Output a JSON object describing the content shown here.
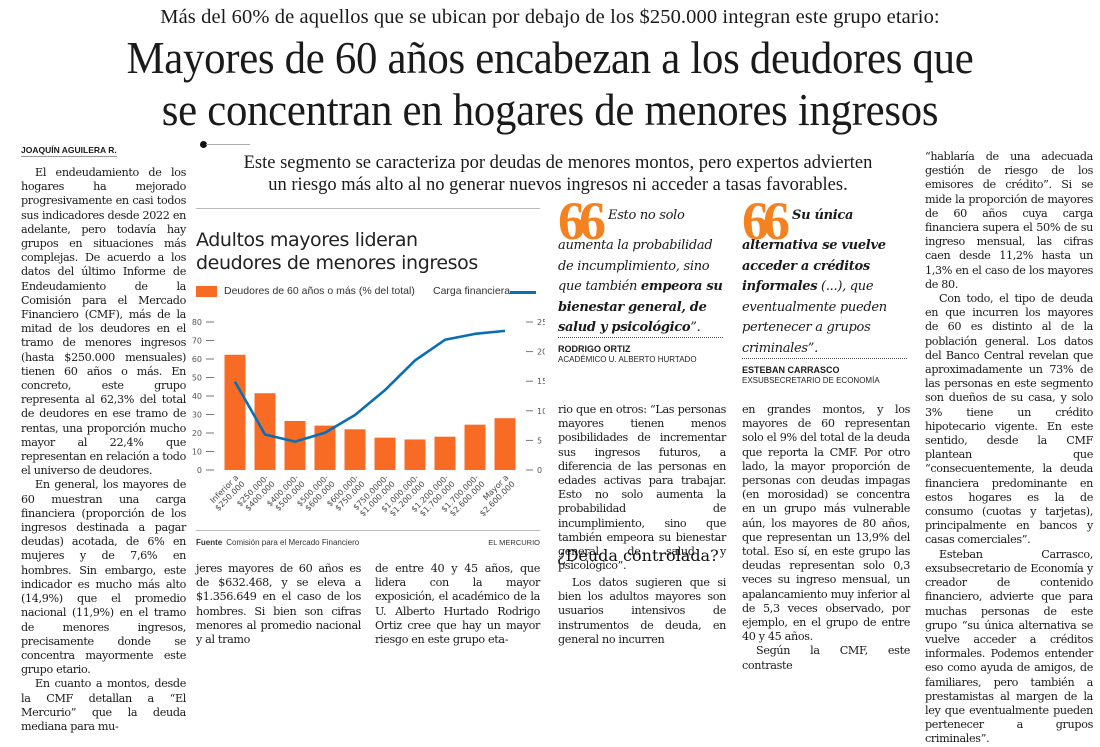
{
  "kicker": "Más del 60% de aquellos que se ubican por debajo de los $250.000 integran este grupo etario:",
  "headline": {
    "line1": "Mayores de 60 años encabezan a los deudores que",
    "line2": "se concentran en hogares de menores ingresos"
  },
  "byline": "JOAQUÍN AGUILERA R.",
  "deck": {
    "line1": "Este segmento se caracteriza por deudas de menores montos, pero expertos advierten",
    "line2": "un riesgo más alto al no generar nuevos ingresos ni acceder a tasas favorables."
  },
  "column1": {
    "p1": "El endeudamiento de los hogares ha mejorado progresivamente en casi todos sus indicadores desde 2022 en adelante, pero todavía hay grupos en situaciones más complejas. De acuerdo a los datos del último Informe de Endeudamiento de la Comisión para el Mercado Financiero (CMF), más de la mitad de los deudores en el tramo de menores ingresos (hasta $250.000 mensuales) tienen 60 años o más. En concreto, este grupo representa al 62,3% del total de deudores en ese tramo de rentas, una proporción mucho mayor al 22,4% que representan en relación a todo el universo de deudores.",
    "p2": "En general, los mayores de 60 muestran una carga financiera (proporción de los ingresos destinada a pagar deudas) acotada, de 6% en mujeres y de 7,6% en hombres. Sin embargo, este indicador es mucho más alto (14,9%) que el promedio nacional (11,9%) en el tramo de menores ingresos, precisamente donde se concentra mayormente este grupo etario.",
    "p3": "En cuanto a montos, desde la CMF detallan a “El Mercurio” que la deuda mediana para mu-"
  },
  "column2": {
    "p1": "jeres mayores de 60 años es de $632.468, y se eleva a $1.356.649 en el caso de los hombres. Si bien son cifras menores al promedio nacional y al tramo"
  },
  "column3": {
    "p1": "de entre 40 y 45 años, que lidera con la mayor exposición, el académico de la U. Alberto Hurtado Rodrigo Ortiz cree que hay un mayor riesgo en este grupo eta-"
  },
  "column4": {
    "p1": "rio que en otros: “Las personas mayores tienen menos posibilidades de incrementar sus ingresos futuros, a diferencia de las personas en edades activas para trabajar. Esto no solo aumenta la probabilidad de incumplimiento, sino que también empeora su bienestar general, de salud y psicológico”.",
    "subhead": "¿Deuda controlada?",
    "p2": "Los datos sugieren que si bien los adultos mayores son usuarios intensivos de instrumentos de deuda, en general no incurren"
  },
  "column5": {
    "p1": "en grandes montos, y los mayores de 60 representan solo el 9% del total de la deuda que reporta la CMF. Por otro lado, la mayor proporción de personas con deudas impagas (en morosidad) se concentra en un grupo más vulnerable aún, los mayores de 80 años, que representan un 13,9% del total. Eso sí, en este grupo las deudas representan solo 0,3 veces su ingreso mensual, un apalancamiento muy inferior al de 5,3 veces observado, por ejemplo, en el grupo de entre 40 y 45 años.",
    "p2": "Según la CMF, este contraste"
  },
  "column6": {
    "p1": "“hablaría de una adecuada gestión de riesgo de los emisores de crédito”. Si se mide la proporción de mayores de 60 años cuya carga financiera supera el 50% de su ingreso mensual, las cifras caen desde 11,2% hasta un 1,3% en el caso de los mayores de 80.",
    "p2": "Con todo, el tipo de deuda en que incurren los mayores de 60 es distinto al de la población general. Los datos del Banco Central revelan que aproximadamente un 73% de las personas en este segmento son dueños de su casa, y solo 3% tiene un crédito hipotecario vigente. En este sentido, desde la CMF plantean que “consecuentemente, la deuda financiera predominante en estos hogares es la de consumo (cuotas y tarjetas), principalmente en bancos y casas comerciales”.",
    "p3": "Esteban Carrasco, exsubsecretario de Economía y creador de contenido financiero, advierte que para muchas personas de este grupo “su única alternativa se vuelve acceder a créditos informales. Podemos entender eso como ayuda de amigos, de familiares, pero también a prestamistas al margen de la ley que eventualmente pueden pertenecer a grupos criminales”."
  },
  "quotes": [
    {
      "mark": "66",
      "text_regular": "Esto no solo aumenta la probabilidad de incumplimiento, sino que también ",
      "text_bold": "empeora su bienestar general, de salud y psicológico",
      "text_end": "”.",
      "name": "RODRIGO ORTIZ",
      "role": "ACADÉMICO U. ALBERTO HURTADO",
      "accent": "#f58220"
    },
    {
      "mark": "66",
      "text_bold": "Su única alternativa se vuelve acceder a créditos informales",
      "text_regular": " (...), que eventualmente pueden pertenecer a grupos criminales",
      "text_end": "”.",
      "name": "ESTEBAN CARRASCO",
      "role": "EXSUBSECRETARIO DE ECONOMÍA",
      "accent": "#f58220"
    }
  ],
  "chart_data": {
    "type": "bar",
    "title_line1": "Adultos mayores lideran",
    "title_line2": "deudores de menores ingresos",
    "legend": {
      "bars": "Deudores de 60 años o más (% del total)",
      "line": "Carga financiera",
      "placement": "top"
    },
    "categories": [
      [
        "Inferior a",
        "$250.000"
      ],
      [
        "$250.000-",
        "$400.000"
      ],
      [
        "$400.000-",
        "$500.000"
      ],
      [
        "$500.000-",
        "$600.000"
      ],
      [
        "$600.000-",
        "$750.000"
      ],
      [
        "$750.0000-",
        "$1.000.000"
      ],
      [
        "$1.000.000-",
        "$1.200.000"
      ],
      [
        "$1.200.000-",
        "$1.700.000"
      ],
      [
        "$1.700.000-",
        "$2.600.000"
      ],
      [
        "Mayor a",
        "$2.600.000"
      ]
    ],
    "series": [
      {
        "name": "Deudores de 60 años o más (% del total)",
        "type": "bar",
        "axis": "left",
        "color": "#f76b24",
        "values": [
          62.3,
          41.5,
          26.5,
          24,
          22,
          17.5,
          16.5,
          18,
          24.5,
          28
        ]
      },
      {
        "name": "Carga financiera",
        "type": "line",
        "axis": "right",
        "color": "#0a6eb4",
        "values": [
          14.9,
          6,
          4.8,
          6.3,
          9.3,
          13.5,
          18.5,
          22,
          23,
          23.5
        ]
      }
    ],
    "y_left": {
      "min": 0,
      "max": 80,
      "ticks": [
        0,
        10,
        20,
        30,
        40,
        50,
        60,
        70,
        80
      ]
    },
    "y_right": {
      "min": 0,
      "max": 25,
      "ticks": [
        0,
        5,
        10,
        15,
        20,
        25
      ]
    },
    "grid": false,
    "source_label": "Fuente",
    "source": "Comisión para el Mercado Financiero",
    "brand": "EL MERCURIO"
  }
}
